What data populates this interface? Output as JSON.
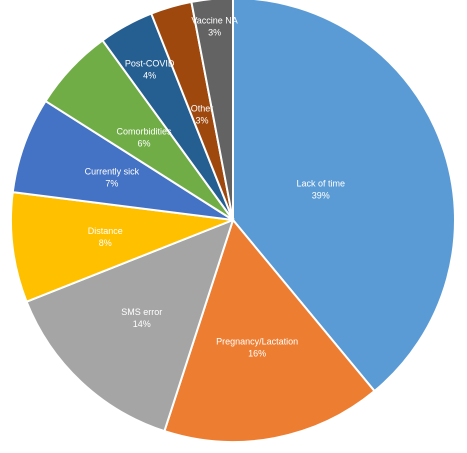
{
  "chart_data": {
    "type": "pie",
    "title": "",
    "slices": [
      {
        "label": "Lack of time",
        "percent_label": "39%",
        "value": 39,
        "color": "#5B9BD5"
      },
      {
        "label": "Pregnancy/Lactation",
        "percent_label": "16%",
        "value": 16,
        "color": "#ED7D31"
      },
      {
        "label": "SMS error",
        "percent_label": "14%",
        "value": 14,
        "color": "#A5A5A5"
      },
      {
        "label": "Distance",
        "percent_label": "8%",
        "value": 8,
        "color": "#FFC000"
      },
      {
        "label": "Currently sick",
        "percent_label": "7%",
        "value": 7,
        "color": "#4472C4"
      },
      {
        "label": "Comorbidities",
        "percent_label": "6%",
        "value": 6,
        "color": "#70AD47"
      },
      {
        "label": "Post-COVID",
        "percent_label": "4%",
        "value": 4,
        "color": "#255E91"
      },
      {
        "label": "Other",
        "percent_label": "3%",
        "value": 3,
        "color": "#9E480E"
      },
      {
        "label": "Vaccine NA",
        "percent_label": "3%",
        "value": 3,
        "color": "#636363"
      }
    ]
  }
}
